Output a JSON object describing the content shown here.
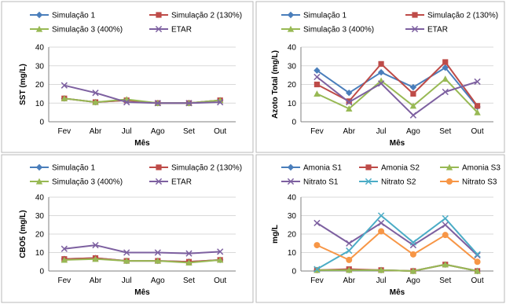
{
  "chart_data": [
    {
      "type": "line",
      "categories": [
        "Fev",
        "Abr",
        "Jul",
        "Ago",
        "Set",
        "Out"
      ],
      "xlabel": "Mês",
      "ylabel": "SST (mg/L)",
      "ylim": [
        0,
        40
      ],
      "yticks": [
        0,
        10,
        20,
        30,
        40
      ],
      "grid": true,
      "legend_position": "top",
      "series": [
        {
          "name": "Simulação 1",
          "color": "#4a7ebb",
          "marker": "diamond",
          "values": [
            12.5,
            10.5,
            11.5,
            10,
            10,
            11.5
          ]
        },
        {
          "name": "Simulação 2 (130%)",
          "color": "#be4b48",
          "marker": "square",
          "values": [
            12.5,
            10.5,
            11.5,
            10,
            10,
            11.5
          ]
        },
        {
          "name": "Simulação 3 (400%)",
          "color": "#98b954",
          "marker": "triangle",
          "values": [
            12.5,
            10.5,
            12,
            10,
            10,
            11.5
          ]
        },
        {
          "name": "ETAR",
          "color": "#7d60a0",
          "marker": "x",
          "values": [
            19.5,
            15.5,
            10.5,
            10,
            10,
            10.5
          ]
        }
      ]
    },
    {
      "type": "line",
      "categories": [
        "Fev",
        "Abr",
        "Jul",
        "Ago",
        "Set",
        "Out"
      ],
      "xlabel": "Mês",
      "ylabel": "Azoto Total (mg/L)",
      "ylim": [
        0,
        40
      ],
      "yticks": [
        0,
        10,
        20,
        30,
        40
      ],
      "grid": true,
      "legend_position": "top",
      "series": [
        {
          "name": "Simulação 1",
          "color": "#4a7ebb",
          "marker": "diamond",
          "values": [
            27.5,
            15.5,
            26.5,
            18.5,
            29,
            8
          ]
        },
        {
          "name": "Simulação 2 (130%)",
          "color": "#be4b48",
          "marker": "square",
          "values": [
            20,
            11,
            31,
            15,
            32,
            8.5
          ]
        },
        {
          "name": "Simulação 3 (400%)",
          "color": "#98b954",
          "marker": "triangle",
          "values": [
            15,
            7,
            22,
            8.5,
            23,
            5
          ]
        },
        {
          "name": "ETAR",
          "color": "#7d60a0",
          "marker": "x",
          "values": [
            24,
            10.5,
            20.5,
            3.5,
            16,
            21.5
          ]
        }
      ]
    },
    {
      "type": "line",
      "categories": [
        "Fev",
        "Abr",
        "Jul",
        "Ago",
        "Set",
        "Out"
      ],
      "xlabel": "Mês",
      "ylabel": "CBO5 (mg/L)",
      "ylim": [
        0,
        40
      ],
      "yticks": [
        0,
        10,
        20,
        30,
        40
      ],
      "grid": true,
      "legend_position": "top",
      "series": [
        {
          "name": "Simulação 1",
          "color": "#4a7ebb",
          "marker": "diamond",
          "values": [
            6.5,
            7,
            5.5,
            5.5,
            5,
            6
          ]
        },
        {
          "name": "Simulação 2 (130%)",
          "color": "#be4b48",
          "marker": "square",
          "values": [
            6.5,
            7,
            5.5,
            5.5,
            5,
            6
          ]
        },
        {
          "name": "Simulação 3 (400%)",
          "color": "#98b954",
          "marker": "triangle",
          "values": [
            6,
            6.5,
            5.5,
            5.5,
            4.5,
            6
          ]
        },
        {
          "name": "ETAR",
          "color": "#7d60a0",
          "marker": "x",
          "values": [
            12,
            14,
            10,
            10,
            9.5,
            10.5
          ]
        }
      ]
    },
    {
      "type": "line",
      "categories": [
        "Fev",
        "Abr",
        "Jul",
        "Ago",
        "Set",
        "Out"
      ],
      "xlabel": "Mês",
      "ylabel": "mg/L",
      "ylim": [
        0,
        40
      ],
      "yticks": [
        0,
        10,
        20,
        30,
        40
      ],
      "grid": true,
      "legend_position": "top",
      "series": [
        {
          "name": "Amonia S1",
          "color": "#4a7ebb",
          "marker": "diamond",
          "values": [
            0.5,
            0.5,
            0.5,
            0,
            3.5,
            0
          ]
        },
        {
          "name": "Amonia S2",
          "color": "#be4b48",
          "marker": "square",
          "values": [
            0.5,
            1,
            0.5,
            0,
            3.5,
            0
          ]
        },
        {
          "name": "Amonia S3",
          "color": "#98b954",
          "marker": "triangle",
          "values": [
            0.5,
            0.5,
            0.5,
            0,
            3.5,
            0
          ]
        },
        {
          "name": "Nitrato S1",
          "color": "#7d60a0",
          "marker": "x",
          "values": [
            26,
            15,
            26,
            14,
            25,
            8.5
          ]
        },
        {
          "name": "Nitrato S2",
          "color": "#4bacc6",
          "marker": "x",
          "values": [
            1,
            11,
            30,
            15.5,
            28.5,
            9
          ]
        },
        {
          "name": "Nitrato S3",
          "color": "#f79646",
          "marker": "circle",
          "values": [
            14,
            6,
            21.5,
            9,
            19.5,
            5
          ]
        }
      ]
    }
  ]
}
